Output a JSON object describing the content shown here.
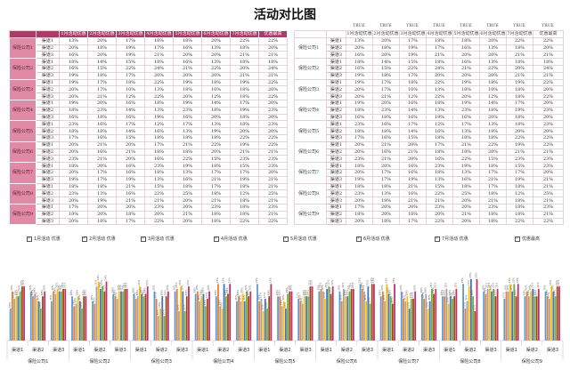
{
  "title": "活动对比图",
  "true_label": "TRUE",
  "left_header": [
    "",
    "",
    "1月活动优惠",
    "2月活动优惠",
    "3月活动优惠",
    "4月活动优惠",
    "5月活动优惠",
    "6月活动优惠",
    "7月活动优惠",
    "优惠最高"
  ],
  "right_header": [
    "",
    "",
    "1月活动优惠",
    "2月活动优惠",
    "3月活动优惠",
    "4月活动优惠",
    "5月活动优惠",
    "6月活动优惠",
    "7月活动优惠",
    "优惠最高"
  ],
  "checkboxes": [
    "1月活动 优惠",
    "2月活动 优惠",
    "3月活动 优惠",
    "4月活动 优惠",
    "5月活动 优惠",
    "6月活动 优惠",
    "7月活动 优惠",
    "优惠最高"
  ],
  "groups": [
    {
      "company": "保险公司1",
      "rows": [
        {
          "channel": "渠道1",
          "values": [
            "13%",
            "20%",
            "17%",
            "18%",
            "18%",
            "20%",
            "22%",
            "22%"
          ]
        },
        {
          "channel": "渠道2",
          "values": [
            "20%",
            "18%",
            "19%",
            "17%",
            "16%",
            "13%",
            "18%",
            "20%"
          ]
        },
        {
          "channel": "渠道3",
          "values": [
            "16%",
            "20%",
            "19%",
            "21%",
            "20%",
            "20%",
            "21%",
            "21%"
          ]
        }
      ]
    },
    {
      "company": "保险公司2",
      "rows": [
        {
          "channel": "渠道1",
          "values": [
            "18%",
            "14%",
            "15%",
            "18%",
            "16%",
            "13%",
            "18%",
            "18%"
          ]
        },
        {
          "channel": "渠道2",
          "values": [
            "16%",
            "15%",
            "22%",
            "24%",
            "21%",
            "22%",
            "20%",
            "24%"
          ]
        },
        {
          "channel": "渠道3",
          "values": [
            "19%",
            "18%",
            "17%",
            "20%",
            "20%",
            "20%",
            "21%",
            "21%"
          ]
        }
      ]
    },
    {
      "company": "保险公司3",
      "rows": [
        {
          "channel": "渠道1",
          "values": [
            "19%",
            "17%",
            "18%",
            "22%",
            "19%",
            "18%",
            "19%",
            "22%"
          ]
        },
        {
          "channel": "渠道2",
          "values": [
            "20%",
            "17%",
            "10%",
            "13%",
            "18%",
            "10%",
            "18%",
            "20%"
          ]
        },
        {
          "channel": "渠道3",
          "values": [
            "20%",
            "21%",
            "12%",
            "22%",
            "20%",
            "12%",
            "18%",
            "22%"
          ]
        }
      ]
    },
    {
      "company": "保险公司4",
      "rows": [
        {
          "channel": "渠道1",
          "values": [
            "19%",
            "20%",
            "16%",
            "18%",
            "19%",
            "14%",
            "17%",
            "20%"
          ]
        },
        {
          "channel": "渠道2",
          "values": [
            "18%",
            "23%",
            "14%",
            "13%",
            "23%",
            "18%",
            "19%",
            "23%"
          ]
        },
        {
          "channel": "渠道3",
          "values": [
            "16%",
            "18%",
            "16%",
            "19%",
            "16%",
            "20%",
            "18%",
            "20%"
          ]
        }
      ]
    },
    {
      "company": "保险公司5",
      "rows": [
        {
          "channel": "渠道1",
          "values": [
            "23%",
            "16%",
            "17%",
            "12%",
            "17%",
            "13%",
            "18%",
            "23%"
          ]
        },
        {
          "channel": "渠道2",
          "values": [
            "18%",
            "18%",
            "14%",
            "16%",
            "13%",
            "19%",
            "20%",
            "20%"
          ]
        },
        {
          "channel": "渠道3",
          "values": [
            "17%",
            "16%",
            "15%",
            "18%",
            "18%",
            "18%",
            "22%",
            "22%"
          ]
        }
      ]
    },
    {
      "company": "保险公司6",
      "rows": [
        {
          "channel": "渠道1",
          "values": [
            "20%",
            "21%",
            "20%",
            "17%",
            "21%",
            "22%",
            "19%",
            "22%"
          ]
        },
        {
          "channel": "渠道2",
          "values": [
            "20%",
            "16%",
            "21%",
            "18%",
            "18%",
            "20%",
            "21%",
            "21%"
          ]
        },
        {
          "channel": "渠道3",
          "values": [
            "23%",
            "21%",
            "20%",
            "16%",
            "22%",
            "15%",
            "23%",
            "23%"
          ]
        }
      ]
    },
    {
      "company": "保险公司7",
      "rows": [
        {
          "channel": "渠道1",
          "values": [
            "18%",
            "20%",
            "16%",
            "23%",
            "19%",
            "18%",
            "15%",
            "23%"
          ]
        },
        {
          "channel": "渠道2",
          "values": [
            "20%",
            "17%",
            "16%",
            "18%",
            "13%",
            "17%",
            "17%",
            "20%"
          ]
        },
        {
          "channel": "渠道3",
          "values": [
            "19%",
            "17%",
            "19%",
            "13%",
            "16%",
            "21%",
            "19%",
            "21%"
          ]
        }
      ]
    },
    {
      "company": "保险公司8",
      "rows": [
        {
          "channel": "渠道1",
          "values": [
            "18%",
            "18%",
            "21%",
            "15%",
            "18%",
            "17%",
            "18%",
            "21%"
          ]
        },
        {
          "channel": "渠道2",
          "values": [
            "23%",
            "13%",
            "16%",
            "22%",
            "25%",
            "18%",
            "12%",
            "25%"
          ]
        },
        {
          "channel": "渠道3",
          "values": [
            "20%",
            "19%",
            "21%",
            "21%",
            "20%",
            "21%",
            "18%",
            "21%"
          ]
        }
      ]
    },
    {
      "company": "保险公司9",
      "rows": [
        {
          "channel": "渠道1",
          "values": [
            "17%",
            "20%",
            "20%",
            "23%",
            "20%",
            "23%",
            "18%",
            "23%"
          ]
        },
        {
          "channel": "渠道2",
          "values": [
            "18%",
            "20%",
            "18%",
            "20%",
            "21%",
            "18%",
            "18%",
            "21%"
          ]
        },
        {
          "channel": "渠道3",
          "values": [
            "20%",
            "18%",
            "17%",
            "22%",
            "20%",
            "18%",
            "22%",
            "22%"
          ]
        }
      ]
    }
  ],
  "chart_data": {
    "type": "bar",
    "categories": [
      "渠道1",
      "渠道2",
      "渠道3"
    ],
    "groups": [
      "保险公司1",
      "保险公司2",
      "保险公司3",
      "保险公司4",
      "保险公司5",
      "保险公司6",
      "保险公司7",
      "保险公司8",
      "保险公司9"
    ],
    "series": [
      {
        "name": "1月活动优惠",
        "color": "#5b9bd5"
      },
      {
        "name": "2月活动优惠",
        "color": "#ed7d31"
      },
      {
        "name": "3月活动优惠",
        "color": "#a5a5a5"
      },
      {
        "name": "4月活动优惠",
        "color": "#ffc000"
      },
      {
        "name": "5月活动优惠",
        "color": "#4472c4"
      },
      {
        "name": "6月活动优惠",
        "color": "#70ad47"
      },
      {
        "name": "7月活动优惠",
        "color": "#9e480e"
      },
      {
        "name": "优惠最高",
        "color": "#c5306a"
      }
    ],
    "ylim": [
      0,
      30
    ],
    "data_source": "groups"
  }
}
